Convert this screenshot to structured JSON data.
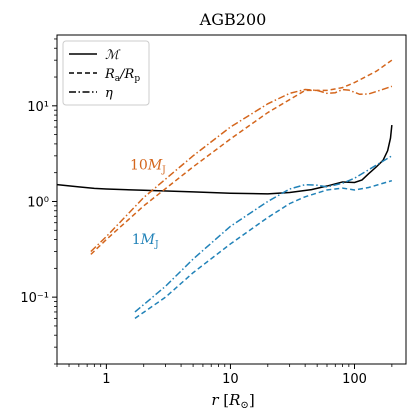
{
  "chart_data": {
    "type": "line",
    "title": "AGB200",
    "xlabel": "r [R⊙]",
    "ylabel": "",
    "xscale": "log",
    "yscale": "log",
    "xlim": [
      0.4,
      260
    ],
    "ylim": [
      0.02,
      55
    ],
    "x_ticks": [
      {
        "value": 1,
        "label": "1"
      },
      {
        "value": 10,
        "label": "10"
      },
      {
        "value": 100,
        "label": "100"
      }
    ],
    "y_ticks": [
      {
        "value": 0.1,
        "label": "10⁻¹"
      },
      {
        "value": 1,
        "label": "10⁰"
      },
      {
        "value": 10,
        "label": "10¹"
      }
    ],
    "grid": false,
    "legend": {
      "placement": "top-left",
      "entries": [
        {
          "label": "ℳ",
          "style": "solid"
        },
        {
          "label": "Ra/Rp",
          "style": "dashed"
        },
        {
          "label": "η",
          "style": "dashdot"
        }
      ]
    },
    "annotations": [
      {
        "text": "10MJ",
        "color": "#d4661d",
        "x": 1.55,
        "y": 2.15
      },
      {
        "text": "1MJ",
        "color": "#2182b8",
        "x": 1.6,
        "y": 0.36
      }
    ],
    "colors": {
      "black": "#000000",
      "orange": "#d4661d",
      "blue": "#2182b8"
    },
    "series": [
      {
        "key": "mach",
        "color": "#000000",
        "style": "solid",
        "points": [
          [
            0.4,
            1.5
          ],
          [
            0.6,
            1.42
          ],
          [
            0.8,
            1.37
          ],
          [
            1,
            1.35
          ],
          [
            2,
            1.31
          ],
          [
            5,
            1.26
          ],
          [
            10,
            1.22
          ],
          [
            20,
            1.2
          ],
          [
            30,
            1.24
          ],
          [
            45,
            1.33
          ],
          [
            60,
            1.45
          ],
          [
            80,
            1.6
          ],
          [
            100,
            1.58
          ],
          [
            115,
            1.68
          ],
          [
            130,
            1.95
          ],
          [
            150,
            2.3
          ],
          [
            170,
            2.7
          ],
          [
            185,
            3.4
          ],
          [
            195,
            4.6
          ],
          [
            200,
            6.3
          ]
        ]
      },
      {
        "key": "ra_rp_10MJ",
        "color": "#d4661d",
        "style": "dashed",
        "points": [
          [
            0.75,
            0.28
          ],
          [
            1,
            0.4
          ],
          [
            2,
            0.9
          ],
          [
            5,
            2.3
          ],
          [
            10,
            4.5
          ],
          [
            20,
            8.5
          ],
          [
            40,
            14.5
          ],
          [
            60,
            14.5
          ],
          [
            80,
            15.5
          ],
          [
            100,
            17.5
          ],
          [
            150,
            23
          ],
          [
            200,
            30
          ]
        ]
      },
      {
        "key": "eta_10MJ",
        "color": "#d4661d",
        "style": "dashdot",
        "points": [
          [
            0.75,
            0.3
          ],
          [
            1,
            0.43
          ],
          [
            2,
            1.1
          ],
          [
            5,
            3.0
          ],
          [
            10,
            6.0
          ],
          [
            20,
            10.5
          ],
          [
            30,
            13.5
          ],
          [
            40,
            14.8
          ],
          [
            50,
            14.5
          ],
          [
            60,
            13.5
          ],
          [
            70,
            13.7
          ],
          [
            80,
            14.8
          ],
          [
            90,
            14.6
          ],
          [
            110,
            13.2
          ],
          [
            130,
            13.3
          ],
          [
            160,
            14.5
          ],
          [
            200,
            16
          ]
        ]
      },
      {
        "key": "ra_rp_1MJ",
        "color": "#2182b8",
        "style": "dashed",
        "points": [
          [
            1.7,
            0.06
          ],
          [
            3,
            0.1
          ],
          [
            5,
            0.18
          ],
          [
            10,
            0.36
          ],
          [
            20,
            0.68
          ],
          [
            30,
            0.95
          ],
          [
            40,
            1.12
          ],
          [
            60,
            1.32
          ],
          [
            80,
            1.38
          ],
          [
            100,
            1.32
          ],
          [
            130,
            1.4
          ],
          [
            200,
            1.65
          ]
        ]
      },
      {
        "key": "eta_1MJ",
        "color": "#2182b8",
        "style": "dashdot",
        "points": [
          [
            1.7,
            0.07
          ],
          [
            3,
            0.13
          ],
          [
            5,
            0.25
          ],
          [
            10,
            0.55
          ],
          [
            20,
            1.0
          ],
          [
            30,
            1.35
          ],
          [
            40,
            1.5
          ],
          [
            50,
            1.48
          ],
          [
            60,
            1.42
          ],
          [
            80,
            1.55
          ],
          [
            100,
            1.75
          ],
          [
            150,
            2.4
          ],
          [
            200,
            3.0
          ]
        ]
      }
    ]
  }
}
